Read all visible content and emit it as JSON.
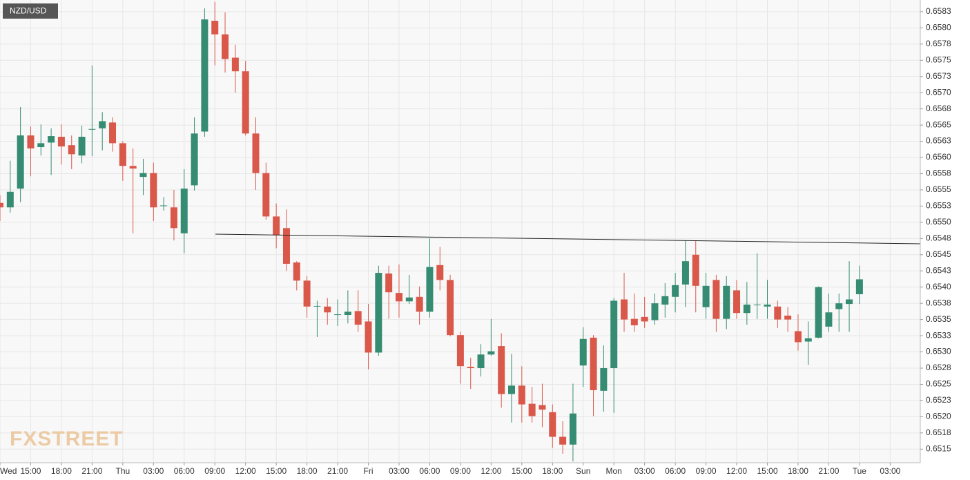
{
  "chart_data": {
    "type": "candlestick",
    "title": "NZD/USD",
    "watermark": "FXSTREET",
    "categories": [
      "Wed",
      null,
      null,
      "15:00",
      null,
      null,
      "18:00",
      null,
      null,
      "21:00",
      null,
      null,
      "Thu",
      null,
      null,
      "03:00",
      null,
      null,
      "06:00",
      null,
      null,
      "09:00",
      null,
      null,
      "12:00",
      null,
      null,
      "15:00",
      null,
      null,
      "18:00",
      null,
      null,
      "21:00",
      null,
      null,
      "Fri",
      null,
      null,
      "03:00",
      null,
      null,
      "06:00",
      null,
      null,
      "09:00",
      null,
      null,
      "12:00",
      null,
      null,
      "15:00",
      null,
      null,
      "18:00",
      null,
      null,
      "Sun",
      null,
      null,
      "Mon",
      null,
      null,
      "03:00",
      null,
      null,
      "06:00",
      null,
      null,
      "09:00",
      null,
      null,
      "12:00",
      null,
      null,
      "15:00",
      null,
      null,
      "18:00",
      null,
      null,
      "21:00",
      null,
      null,
      "Tue",
      null,
      null,
      "03:00",
      null,
      null
    ],
    "open": [
      0.6553,
      0.65523,
      0.65552,
      0.65634,
      0.65616,
      0.65623,
      0.65632,
      0.65619,
      0.65603,
      0.65643,
      0.65645,
      0.65654,
      0.65622,
      0.65587,
      0.6557,
      0.65576,
      0.65525,
      0.65523,
      0.65483,
      0.65557,
      0.6564,
      0.65811,
      0.6579,
      0.65754,
      0.65733,
      0.65637,
      0.65576,
      0.65509,
      0.65491,
      0.65438,
      0.6541,
      0.6537,
      0.6537,
      0.65357,
      0.65357,
      0.65363,
      0.65347,
      0.65299,
      0.65421,
      0.65391,
      0.65378,
      0.65385,
      0.65362,
      0.65434,
      0.65411,
      0.65326,
      0.65277,
      0.65275,
      0.65296,
      0.65309,
      0.65235,
      0.65248,
      0.6522,
      0.65218,
      0.65207,
      0.65169,
      0.65157,
      0.65279,
      0.65322,
      0.6524,
      0.65275,
      0.65381,
      0.65351,
      0.65354,
      0.65349,
      0.65373,
      0.65385,
      0.65404,
      0.6545,
      0.65369,
      0.65411,
      0.65351,
      0.65395,
      0.6536,
      0.65372,
      0.6537,
      0.6537,
      0.65356,
      0.65332,
      0.65316,
      0.65322,
      0.65339,
      0.65366,
      0.65374,
      0.65389,
      null,
      null,
      null,
      null,
      null
    ],
    "high": [
      0.65542,
      0.65595,
      0.65678,
      0.65648,
      0.65651,
      0.65645,
      0.65651,
      0.65634,
      0.65649,
      0.65742,
      0.6567,
      0.65662,
      0.65625,
      0.65614,
      0.65598,
      0.65592,
      0.65539,
      0.6555,
      0.65582,
      0.65662,
      0.6583,
      0.6584,
      0.65824,
      0.65774,
      0.65749,
      0.65662,
      0.65592,
      0.65529,
      0.6552,
      0.6544,
      0.65417,
      0.65379,
      0.65383,
      0.65381,
      0.65395,
      0.65395,
      0.65374,
      0.65433,
      0.65433,
      0.65435,
      0.65419,
      0.65401,
      0.65475,
      0.65462,
      0.65419,
      0.65331,
      0.65291,
      0.65312,
      0.65351,
      0.65329,
      0.65297,
      0.65278,
      0.65246,
      0.65251,
      0.65219,
      0.65193,
      0.65251,
      0.65338,
      0.65326,
      0.6531,
      0.65383,
      0.65422,
      0.6539,
      0.65385,
      0.6539,
      0.65406,
      0.65422,
      0.65472,
      0.65472,
      0.65422,
      0.65419,
      0.65417,
      0.65411,
      0.65408,
      0.65452,
      0.65411,
      0.65379,
      0.65369,
      0.65358,
      0.65347,
      0.65401,
      0.6539,
      0.6539,
      0.6544,
      0.65433,
      null,
      null,
      null,
      null,
      null
    ],
    "low": [
      0.65502,
      0.65515,
      0.65531,
      0.65571,
      0.65603,
      0.65573,
      0.65589,
      0.65582,
      0.65591,
      0.65602,
      0.65611,
      0.65609,
      0.65564,
      0.65483,
      0.65542,
      0.65502,
      0.65518,
      0.65472,
      0.65452,
      0.65549,
      0.65632,
      0.65742,
      0.65731,
      0.657,
      0.65634,
      0.6555,
      0.65504,
      0.6546,
      0.65425,
      0.65395,
      0.65353,
      0.65323,
      0.65342,
      0.6534,
      0.65344,
      0.65331,
      0.65273,
      0.65294,
      0.65351,
      0.65353,
      0.65374,
      0.65342,
      0.65353,
      0.65395,
      0.65324,
      0.65251,
      0.65243,
      0.65262,
      0.65294,
      0.65214,
      0.65191,
      0.65191,
      0.65191,
      0.65184,
      0.65152,
      0.65143,
      0.65131,
      0.65246,
      0.65201,
      0.65208,
      0.65206,
      0.65331,
      0.65331,
      0.65337,
      0.65342,
      0.65353,
      0.65361,
      0.65369,
      0.65361,
      0.65351,
      0.65331,
      0.65335,
      0.65351,
      0.65342,
      0.65351,
      0.65351,
      0.65337,
      0.65331,
      0.65302,
      0.6528,
      0.65321,
      0.65331,
      0.65331,
      0.65331,
      0.65374,
      null,
      null,
      null,
      null,
      null
    ],
    "close": [
      0.65523,
      0.65547,
      0.65634,
      0.65614,
      0.65622,
      0.65633,
      0.65617,
      0.65605,
      0.65632,
      0.65644,
      0.65656,
      0.65622,
      0.65587,
      0.65583,
      0.65576,
      0.65523,
      0.65526,
      0.65491,
      0.65552,
      0.65637,
      0.65813,
      0.6579,
      0.65752,
      0.65733,
      0.65637,
      0.65576,
      0.65509,
      0.6548,
      0.65436,
      0.6541,
      0.6537,
      0.65371,
      0.65361,
      0.65358,
      0.65362,
      0.65342,
      0.65299,
      0.65422,
      0.65392,
      0.65378,
      0.65384,
      0.65362,
      0.65431,
      0.65411,
      0.65326,
      0.65278,
      0.65275,
      0.65296,
      0.65301,
      0.65235,
      0.65248,
      0.65219,
      0.65201,
      0.65211,
      0.65169,
      0.65157,
      0.65205,
      0.6532,
      0.65241,
      0.65275,
      0.65379,
      0.6535,
      0.65341,
      0.65347,
      0.65375,
      0.65386,
      0.65403,
      0.6544,
      0.65402,
      0.65402,
      0.65351,
      0.65402,
      0.6536,
      0.65373,
      0.65373,
      0.65373,
      0.6535,
      0.6535,
      0.65315,
      0.65321,
      0.654,
      0.65361,
      0.65375,
      0.65381,
      0.65412,
      null,
      null,
      null,
      null,
      null
    ],
    "up_color": "#358c72",
    "down_color": "#d9584a",
    "ylim": [
      0.65129,
      0.65843
    ],
    "yticks": [
      0.6515,
      {
        "value": 0.65175,
        "label": "0.6518"
      },
      {
        "value": 0.652,
        "label": "0.6520"
      },
      {
        "value": 0.65225,
        "label": "0.6523"
      },
      0.6525,
      {
        "value": 0.65275,
        "label": "0.6528"
      },
      {
        "value": 0.653,
        "label": "0.6530"
      },
      {
        "value": 0.65325,
        "label": "0.6533"
      },
      0.6535,
      {
        "value": 0.65375,
        "label": "0.6538"
      },
      {
        "value": 0.654,
        "label": "0.6540"
      },
      {
        "value": 0.65425,
        "label": "0.6543"
      },
      0.6545,
      {
        "value": 0.65475,
        "label": "0.6548"
      },
      {
        "value": 0.655,
        "label": "0.6550"
      },
      {
        "value": 0.65525,
        "label": "0.6553"
      },
      0.6555,
      {
        "value": 0.65575,
        "label": "0.6558"
      },
      {
        "value": 0.656,
        "label": "0.6560"
      },
      {
        "value": 0.65625,
        "label": "0.6563"
      },
      0.6565,
      {
        "value": 0.65675,
        "label": "0.6568"
      },
      {
        "value": 0.657,
        "label": "0.6570"
      },
      {
        "value": 0.65725,
        "label": "0.6573"
      },
      0.6575,
      {
        "value": 0.65775,
        "label": "0.6578"
      },
      {
        "value": 0.658,
        "label": "0.6580"
      },
      {
        "value": 0.65825,
        "label": "0.6583"
      }
    ],
    "grid": true
  }
}
